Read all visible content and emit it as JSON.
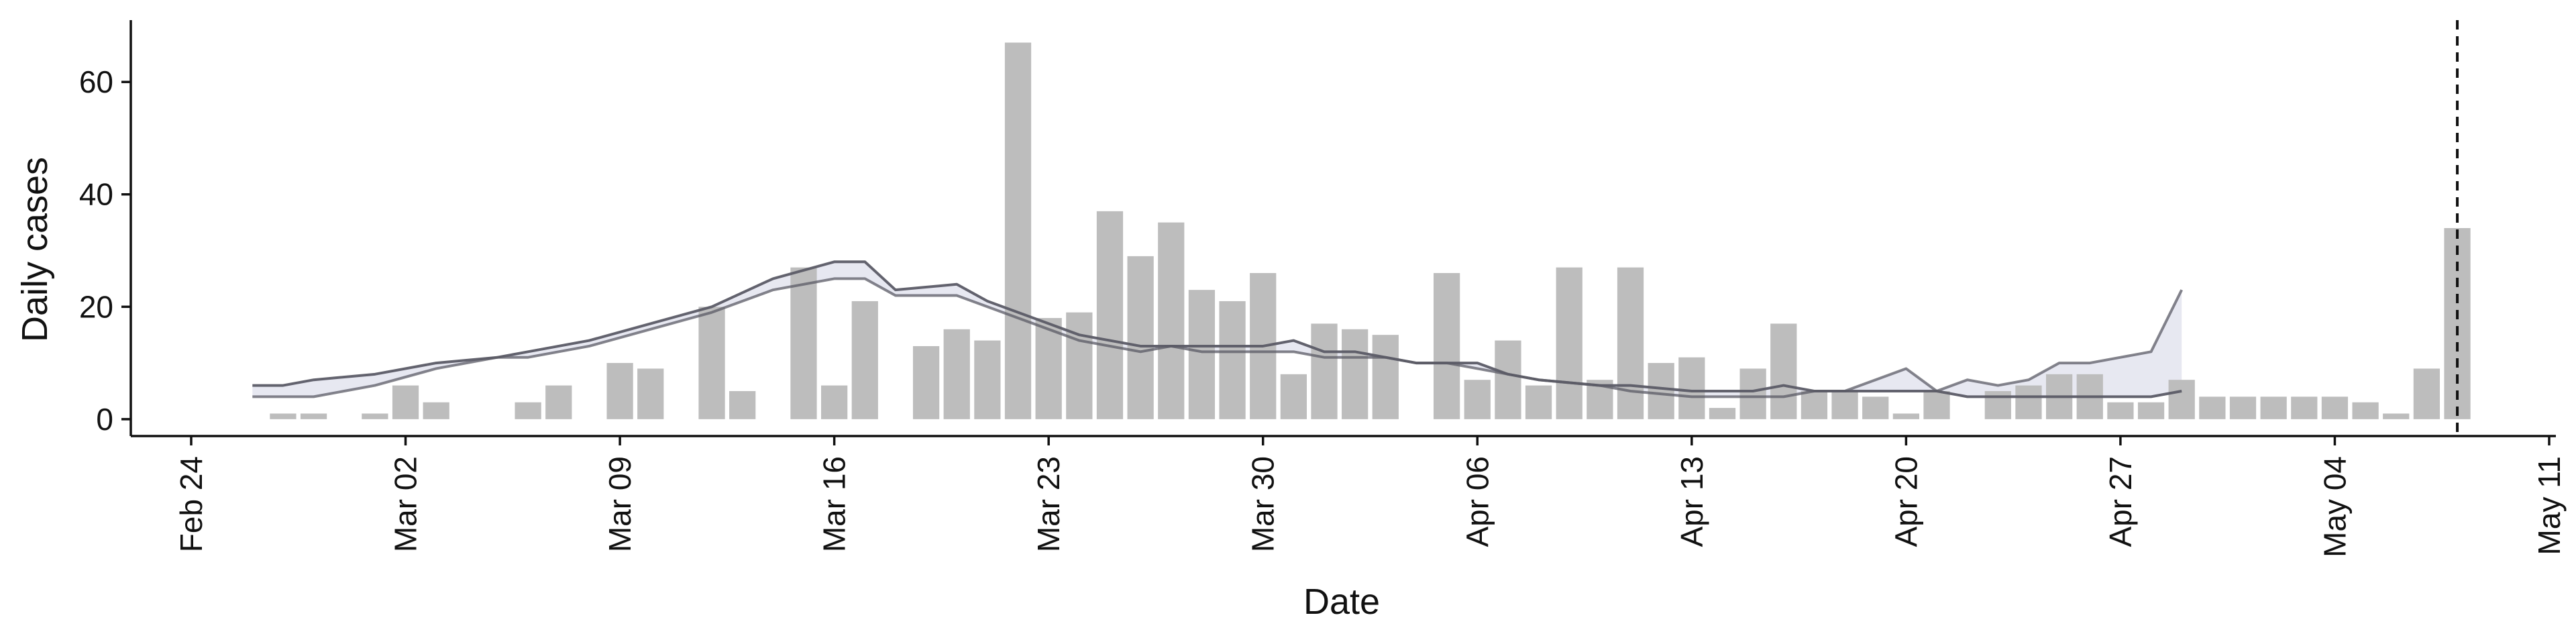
{
  "chart_data": {
    "type": "bar",
    "xlabel": "Date",
    "ylabel": "Daily cases",
    "xlim": [
      "2020-02-24",
      "2020-05-11"
    ],
    "ylim": [
      -3,
      71
    ],
    "x_ticks": [
      "2020-02-24",
      "2020-03-02",
      "2020-03-09",
      "2020-03-16",
      "2020-03-23",
      "2020-03-30",
      "2020-04-06",
      "2020-04-13",
      "2020-04-20",
      "2020-04-27",
      "2020-05-04",
      "2020-05-11"
    ],
    "x_tick_labels": [
      "Feb 24",
      "Mar 02",
      "Mar 09",
      "Mar 16",
      "Mar 23",
      "Mar 30",
      "Apr 06",
      "Apr 13",
      "Apr 20",
      "Apr 27",
      "May 04",
      "May 11"
    ],
    "y_ticks": [
      0,
      20,
      40,
      60
    ],
    "y_tick_labels": [
      "0",
      "20",
      "40",
      "60"
    ],
    "grid": false,
    "bar_color": "#bdbdbd",
    "line_color": "#5b5b66",
    "band_color": "#c9cbe0",
    "vline_date": "2020-05-08",
    "series": [
      {
        "type": "bar",
        "x": [
          "2020-02-27",
          "2020-02-28",
          "2020-03-01",
          "2020-03-02",
          "2020-03-03",
          "2020-03-06",
          "2020-03-07",
          "2020-03-09",
          "2020-03-10",
          "2020-03-12",
          "2020-03-13",
          "2020-03-15",
          "2020-03-16",
          "2020-03-17",
          "2020-03-19",
          "2020-03-20",
          "2020-03-21",
          "2020-03-22",
          "2020-03-23",
          "2020-03-24",
          "2020-03-25",
          "2020-03-26",
          "2020-03-27",
          "2020-03-28",
          "2020-03-29",
          "2020-03-30",
          "2020-03-31",
          "2020-04-01",
          "2020-04-02",
          "2020-04-03",
          "2020-04-05",
          "2020-04-06",
          "2020-04-07",
          "2020-04-08",
          "2020-04-09",
          "2020-04-10",
          "2020-04-11",
          "2020-04-12",
          "2020-04-13",
          "2020-04-14",
          "2020-04-15",
          "2020-04-16",
          "2020-04-17",
          "2020-04-18",
          "2020-04-19",
          "2020-04-20",
          "2020-04-21",
          "2020-04-23",
          "2020-04-24",
          "2020-04-25",
          "2020-04-26",
          "2020-04-27",
          "2020-04-28",
          "2020-04-29",
          "2020-04-30",
          "2020-05-01",
          "2020-05-02",
          "2020-05-03",
          "2020-05-04",
          "2020-05-05",
          "2020-05-06",
          "2020-05-07",
          "2020-05-08"
        ],
        "values": [
          1,
          1,
          1,
          6,
          3,
          3,
          6,
          10,
          9,
          20,
          5,
          27,
          6,
          21,
          13,
          16,
          14,
          67,
          18,
          19,
          37,
          29,
          35,
          23,
          21,
          26,
          8,
          17,
          16,
          15,
          26,
          7,
          14,
          6,
          27,
          7,
          27,
          10,
          11,
          2,
          9,
          17,
          5,
          5,
          4,
          1,
          5,
          5,
          6,
          8,
          8,
          3,
          3,
          7,
          4,
          4,
          4,
          4,
          4,
          3,
          1,
          9,
          34
        ]
      },
      {
        "type": "line",
        "x": [
          "2020-02-26",
          "2020-02-27",
          "2020-02-28",
          "2020-03-01",
          "2020-03-03",
          "2020-03-05",
          "2020-03-06",
          "2020-03-08",
          "2020-03-10",
          "2020-03-12",
          "2020-03-14",
          "2020-03-16",
          "2020-03-17",
          "2020-03-18",
          "2020-03-20",
          "2020-03-21",
          "2020-03-23",
          "2020-03-24",
          "2020-03-25",
          "2020-03-26",
          "2020-03-27",
          "2020-03-28",
          "2020-03-29",
          "2020-03-30",
          "2020-03-31",
          "2020-04-01",
          "2020-04-02",
          "2020-04-03",
          "2020-04-04",
          "2020-04-05",
          "2020-04-06",
          "2020-04-07",
          "2020-04-08",
          "2020-04-10",
          "2020-04-11",
          "2020-04-13",
          "2020-04-14",
          "2020-04-15",
          "2020-04-16",
          "2020-04-17",
          "2020-04-18",
          "2020-04-19",
          "2020-04-20",
          "2020-04-21",
          "2020-04-22",
          "2020-04-23",
          "2020-04-24",
          "2020-04-25",
          "2020-04-26",
          "2020-04-27",
          "2020-04-28",
          "2020-04-29"
        ],
        "values": [
          6,
          6,
          7,
          8,
          10,
          11,
          12,
          14,
          17,
          20,
          25,
          28,
          28,
          23,
          24,
          21,
          17,
          15,
          14,
          13,
          13,
          13,
          13,
          13,
          14,
          12,
          12,
          11,
          10,
          10,
          10,
          8,
          7,
          6,
          6,
          5,
          5,
          5,
          6,
          5,
          5,
          5,
          5,
          5,
          4,
          4,
          4,
          4,
          4,
          4,
          4,
          5
        ]
      },
      {
        "type": "line",
        "x": [
          "2020-02-26",
          "2020-02-27",
          "2020-02-28",
          "2020-03-01",
          "2020-03-03",
          "2020-03-05",
          "2020-03-06",
          "2020-03-08",
          "2020-03-10",
          "2020-03-12",
          "2020-03-14",
          "2020-03-16",
          "2020-03-17",
          "2020-03-18",
          "2020-03-20",
          "2020-03-21",
          "2020-03-23",
          "2020-03-24",
          "2020-03-25",
          "2020-03-26",
          "2020-03-27",
          "2020-03-28",
          "2020-03-29",
          "2020-03-30",
          "2020-03-31",
          "2020-04-01",
          "2020-04-02",
          "2020-04-03",
          "2020-04-04",
          "2020-04-05",
          "2020-04-06",
          "2020-04-07",
          "2020-04-08",
          "2020-04-10",
          "2020-04-11",
          "2020-04-13",
          "2020-04-14",
          "2020-04-15",
          "2020-04-16",
          "2020-04-17",
          "2020-04-18",
          "2020-04-19",
          "2020-04-20",
          "2020-04-21",
          "2020-04-22",
          "2020-04-23",
          "2020-04-24",
          "2020-04-25",
          "2020-04-26",
          "2020-04-27",
          "2020-04-28",
          "2020-04-29"
        ],
        "values": [
          4,
          4,
          4,
          6,
          9,
          11,
          11,
          13,
          16,
          19,
          23,
          25,
          25,
          22,
          22,
          20,
          16,
          14,
          13,
          12,
          13,
          12,
          12,
          12,
          12,
          11,
          11,
          11,
          10,
          10,
          9,
          8,
          7,
          6,
          5,
          4,
          4,
          4,
          4,
          5,
          5,
          7,
          9,
          5,
          7,
          6,
          7,
          10,
          10,
          11,
          12,
          23
        ]
      }
    ]
  }
}
